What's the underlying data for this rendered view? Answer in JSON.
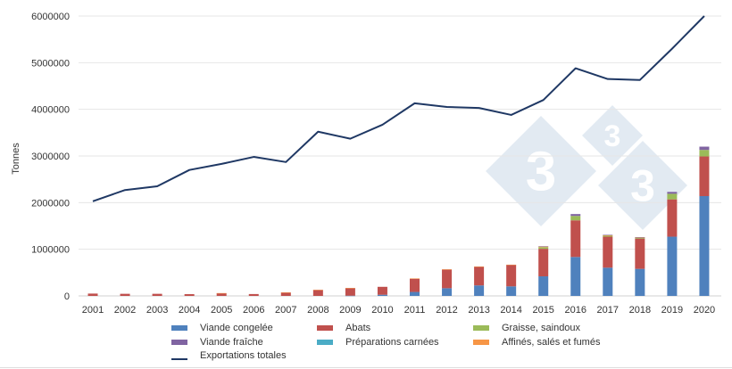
{
  "chart_data": {
    "type": "bar+line",
    "ylabel": "Tonnes",
    "ylim": [
      0,
      6000000
    ],
    "yticks": [
      "0",
      "1000000",
      "2000000",
      "3000000",
      "4000000",
      "5000000",
      "6000000"
    ],
    "grid": true,
    "legend_position": "bottom",
    "categories": [
      "2001",
      "2002",
      "2003",
      "2004",
      "2005",
      "2006",
      "2007",
      "2008",
      "2009",
      "2010",
      "2011",
      "2012",
      "2013",
      "2014",
      "2015",
      "2016",
      "2017",
      "2018",
      "2019",
      "2020"
    ],
    "series": [
      {
        "name": "Viande congelée",
        "kind": "bar",
        "color": "#4f81bd",
        "values": [
          0,
          0,
          0,
          0,
          0,
          0,
          0,
          0,
          5000,
          25000,
          85000,
          165000,
          225000,
          205000,
          420000,
          835000,
          605000,
          580000,
          1270000,
          2140000
        ]
      },
      {
        "name": "Abats",
        "kind": "bar",
        "color": "#c0504d",
        "values": [
          50000,
          45000,
          45000,
          38000,
          58000,
          40000,
          72000,
          128000,
          162000,
          170000,
          285000,
          400000,
          400000,
          460000,
          590000,
          785000,
          665000,
          650000,
          800000,
          850000
        ]
      },
      {
        "name": "Graisse, saindoux",
        "kind": "bar",
        "color": "#9bbb59",
        "values": [
          0,
          0,
          0,
          0,
          0,
          0,
          0,
          0,
          0,
          0,
          0,
          0,
          0,
          0,
          35000,
          95000,
          25000,
          20000,
          120000,
          140000
        ]
      },
      {
        "name": "Viande fraîche",
        "kind": "bar",
        "color": "#8064a2",
        "values": [
          0,
          0,
          0,
          0,
          0,
          0,
          0,
          0,
          0,
          0,
          0,
          0,
          0,
          0,
          5000,
          40000,
          10000,
          5000,
          40000,
          70000
        ]
      },
      {
        "name": "Préparations carnées",
        "kind": "bar",
        "color": "#4bacc6",
        "values": [
          0,
          0,
          0,
          0,
          0,
          0,
          0,
          0,
          0,
          0,
          0,
          0,
          0,
          0,
          0,
          0,
          0,
          0,
          0,
          0
        ]
      },
      {
        "name": "Affinés, salés et fumés",
        "kind": "bar",
        "color": "#f79646",
        "values": [
          0,
          0,
          0,
          0,
          2000,
          0,
          3000,
          2000,
          3000,
          0,
          5000,
          5000,
          5000,
          5000,
          15000,
          0,
          5000,
          5000,
          0,
          0
        ]
      },
      {
        "name": "Exportations totales",
        "kind": "line",
        "color": "#1f3864",
        "values": [
          2030000,
          2270000,
          2350000,
          2700000,
          2830000,
          2980000,
          2870000,
          3520000,
          3370000,
          3670000,
          4130000,
          4050000,
          4030000,
          3880000,
          4200000,
          4880000,
          4650000,
          4630000,
          5300000,
          6000000
        ]
      }
    ]
  },
  "legend": {
    "items": [
      {
        "label": "Viande congelée",
        "color": "#4f81bd"
      },
      {
        "label": "Abats",
        "color": "#c0504d"
      },
      {
        "label": "Graisse, saindoux",
        "color": "#9bbb59"
      },
      {
        "label": "Viande fraîche",
        "color": "#8064a2"
      },
      {
        "label": "Préparations carnées",
        "color": "#4bacc6"
      },
      {
        "label": "Affinés, salés et fumés",
        "color": "#f79646"
      },
      {
        "label": "Exportations totales",
        "color": "#1f3864"
      }
    ]
  },
  "watermark": {
    "text": "3",
    "color": "#dbe5ef"
  }
}
